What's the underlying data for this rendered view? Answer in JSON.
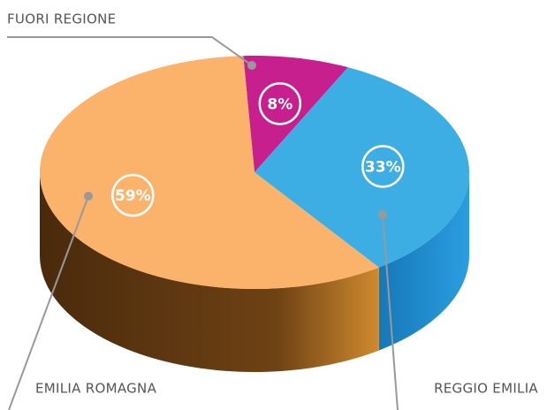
{
  "chart_data": {
    "type": "pie3d",
    "categories": [
      "FUORI REGIONE",
      "REGGIO EMILIA",
      "EMILIA ROMAGNA"
    ],
    "series": [
      {
        "colors": [
          "#c71f8e",
          "#3daee3",
          "#fbb36b"
        ],
        "values": [
          8,
          33,
          59
        ],
        "value_labels": [
          "8%",
          "33%",
          "59%"
        ]
      }
    ]
  }
}
